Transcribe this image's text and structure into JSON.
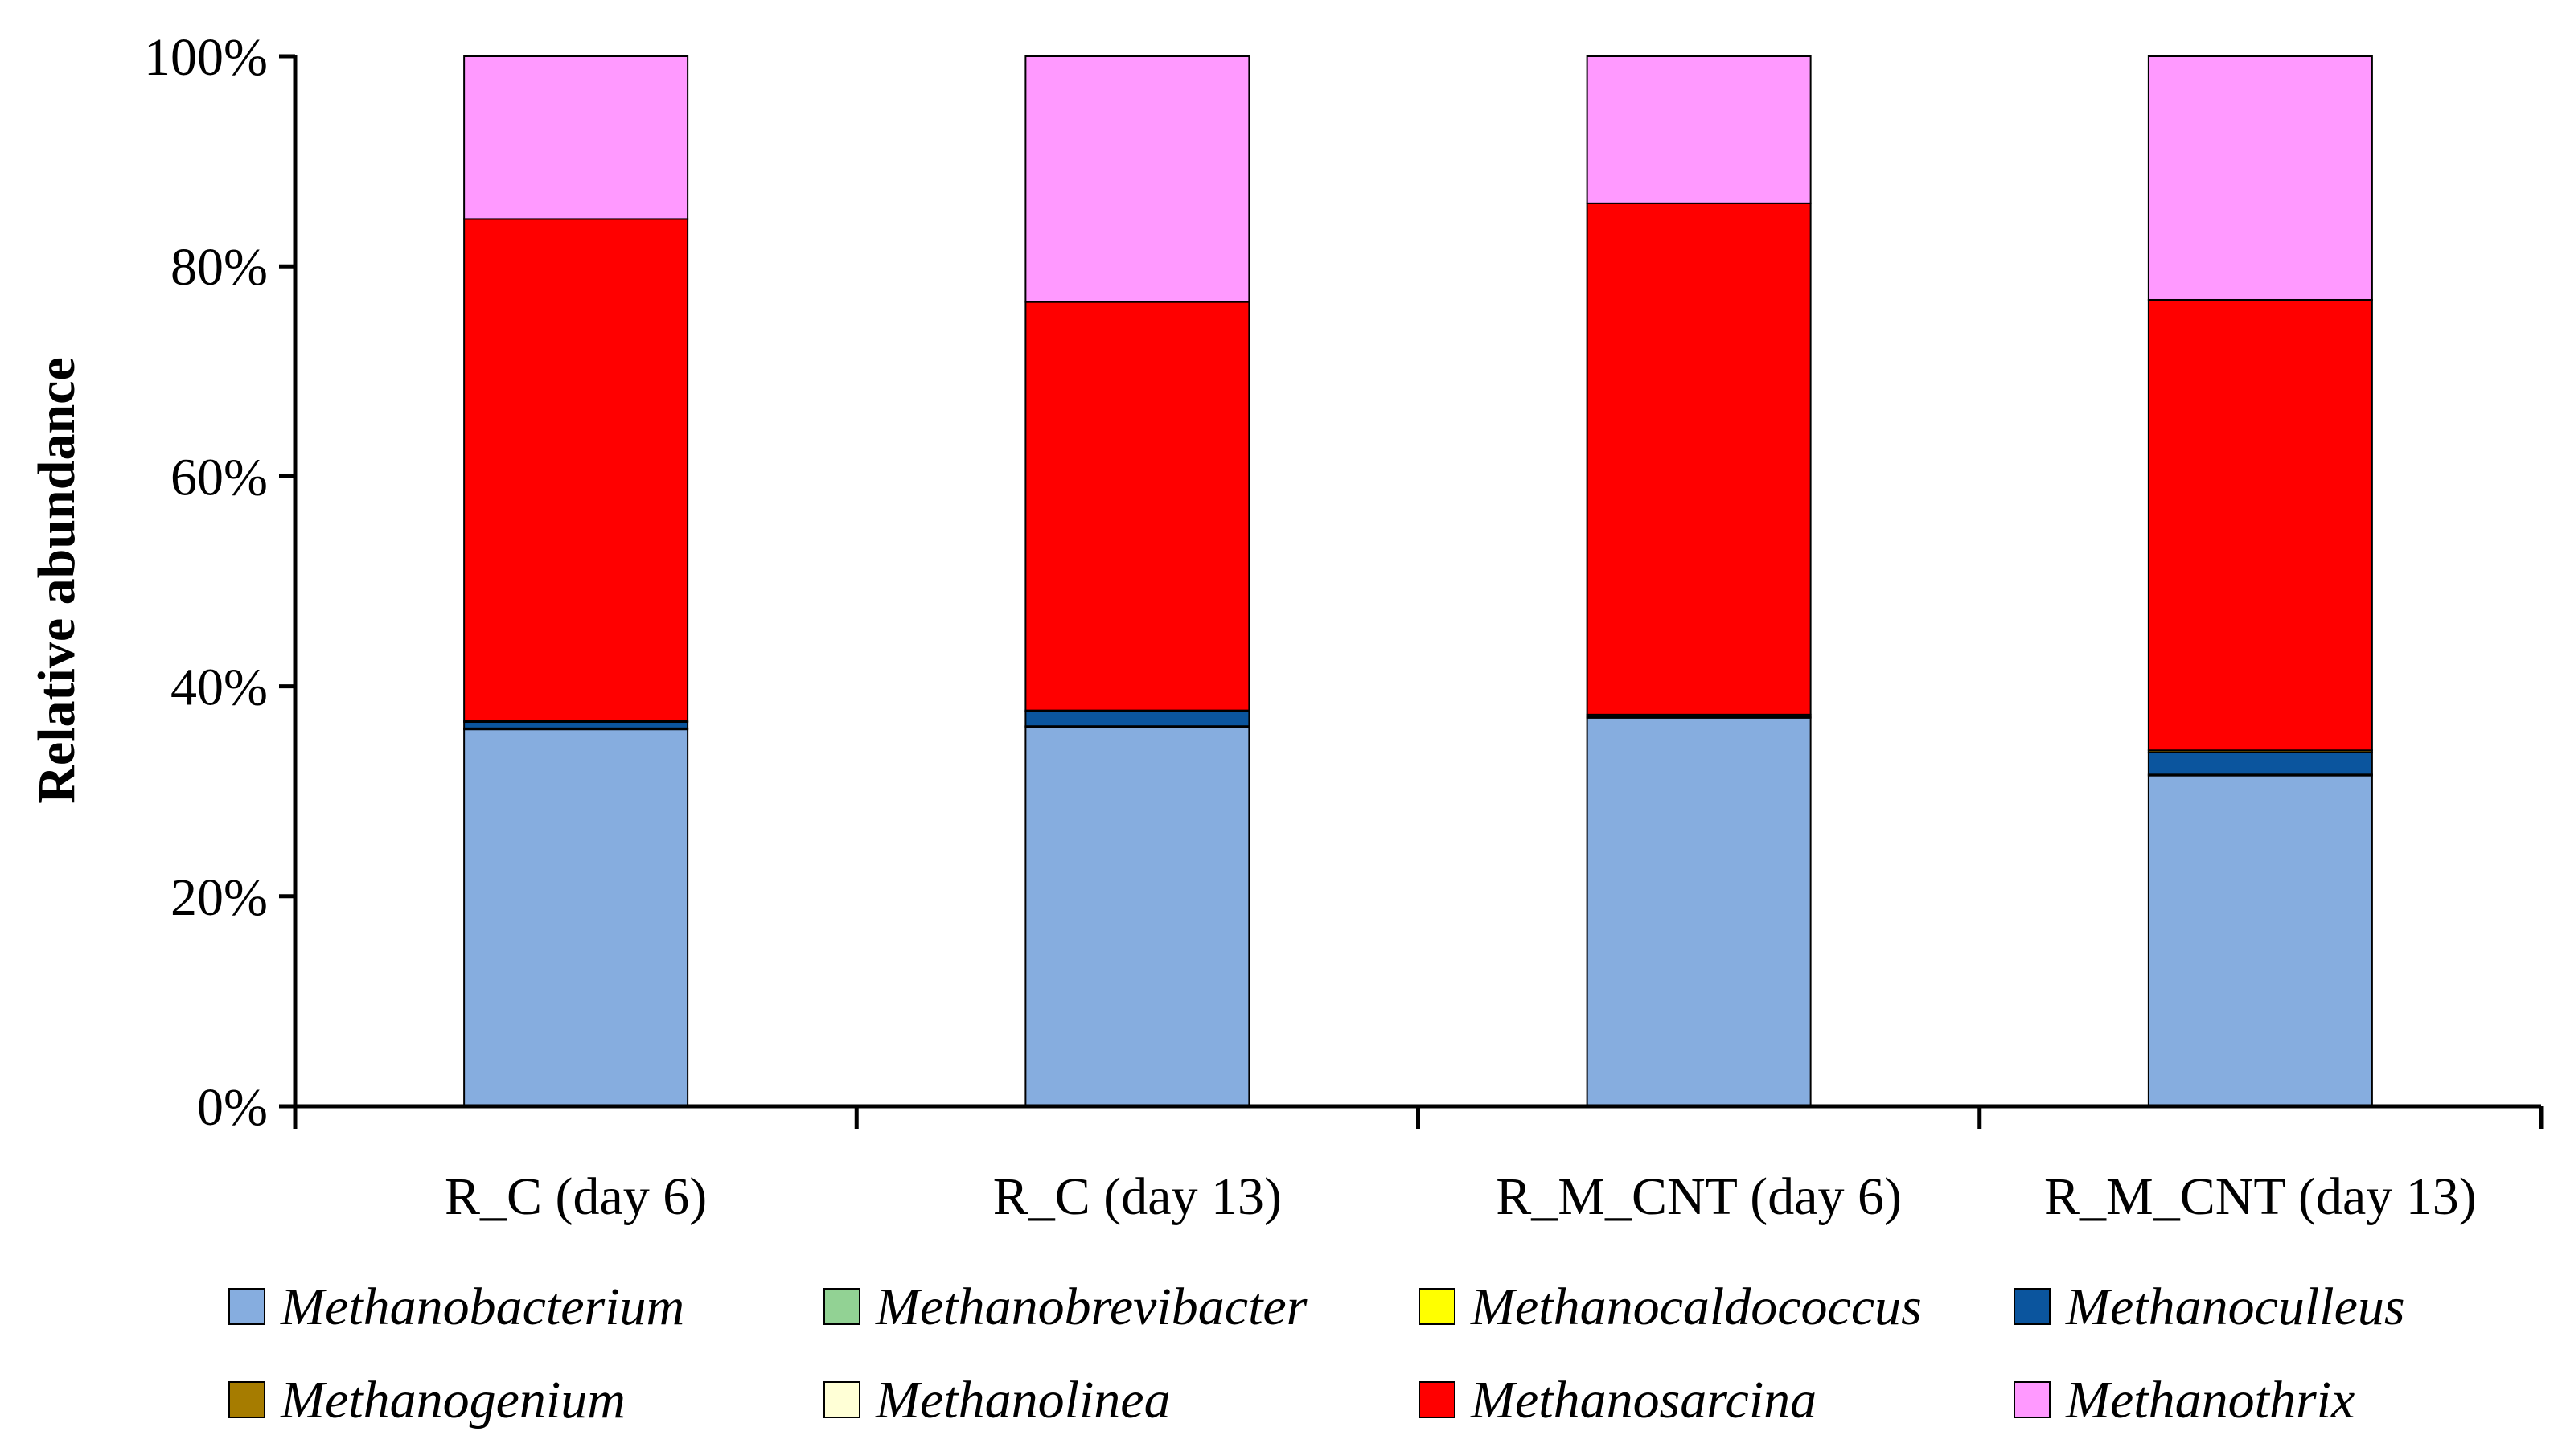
{
  "chart_data": {
    "type": "bar",
    "stacked": true,
    "percent": true,
    "title": "",
    "xlabel": "",
    "ylabel": "Relative abundance",
    "ylim": [
      0,
      100
    ],
    "yticks": [
      "0%",
      "20%",
      "40%",
      "60%",
      "80%",
      "100%"
    ],
    "categories": [
      "R_C (day 6)",
      "R_C (day 13)",
      "R_M_CNT (day 6)",
      "R_M_CNT (day 13)"
    ],
    "series": [
      {
        "name": "Methanobacterium",
        "color": "#86ADDF",
        "values": [
          35.9,
          36.1,
          37.0,
          31.5
        ]
      },
      {
        "name": "Methanobrevibacter",
        "color": "#92D294",
        "values": [
          0.1,
          0.1,
          0.1,
          0.1
        ]
      },
      {
        "name": "Methanocaldococcus",
        "color": "#FFFF00",
        "values": [
          0.0,
          0.0,
          0.0,
          0.0
        ]
      },
      {
        "name": "Methanoculleus",
        "color": "#0B559E",
        "values": [
          0.6,
          1.4,
          0.2,
          2.1
        ]
      },
      {
        "name": "Methanogenium",
        "color": "#A67C00",
        "values": [
          0.1,
          0.1,
          0.0,
          0.2
        ]
      },
      {
        "name": "Methanolinea",
        "color": "#FFFFD6",
        "values": [
          0.0,
          0.0,
          0.0,
          0.0
        ]
      },
      {
        "name": "Methanosarcina",
        "color": "#FF0000",
        "values": [
          47.8,
          38.9,
          48.7,
          42.9
        ]
      },
      {
        "name": "Methanothrix",
        "color": "#FF99FF",
        "values": [
          15.5,
          23.4,
          14.0,
          23.2
        ]
      }
    ],
    "legend_position": "bottom"
  }
}
